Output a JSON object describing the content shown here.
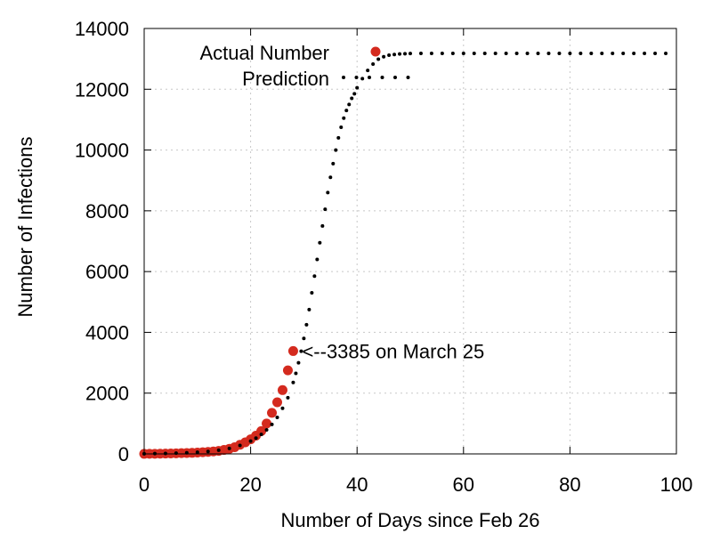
{
  "chart_data": {
    "type": "scatter",
    "xlabel": "Number of Days since Feb 26",
    "ylabel": "Number of Infections",
    "xlim": [
      0,
      100
    ],
    "ylim": [
      0,
      14000
    ],
    "xticks": [
      0,
      20,
      40,
      60,
      80,
      100
    ],
    "yticks": [
      0,
      2000,
      4000,
      6000,
      8000,
      10000,
      12000,
      14000
    ],
    "grid": true,
    "legend_position": "top-right",
    "series": [
      {
        "name": "Actual Number",
        "color": "#d42a1e",
        "marker": "circle",
        "x": [
          0,
          1,
          2,
          3,
          4,
          5,
          6,
          7,
          8,
          9,
          10,
          11,
          12,
          13,
          14,
          15,
          16,
          17,
          18,
          19,
          20,
          21,
          22,
          23,
          24,
          25,
          26,
          27,
          28
        ],
        "y": [
          2,
          3,
          5,
          8,
          12,
          15,
          20,
          25,
          30,
          35,
          45,
          55,
          65,
          80,
          100,
          130,
          170,
          220,
          300,
          380,
          480,
          600,
          750,
          1000,
          1350,
          1700,
          2100,
          2750,
          3385
        ]
      },
      {
        "name": "Prediction",
        "color": "#000000",
        "marker": "dot",
        "x": [
          0,
          2,
          4,
          6,
          8,
          10,
          12,
          14,
          16,
          18,
          20,
          21,
          22,
          23,
          24,
          25,
          26,
          27,
          28,
          28.5,
          29,
          29.5,
          30,
          30.5,
          31,
          31.5,
          32,
          32.5,
          33,
          33.5,
          34,
          34.5,
          35,
          35.5,
          36,
          36.5,
          37,
          37.5,
          38,
          38.5,
          39,
          39.5,
          40,
          41,
          42,
          43,
          44,
          45,
          46,
          47,
          48,
          49,
          50,
          52,
          54,
          56,
          58,
          60,
          62,
          64,
          66,
          68,
          70,
          72,
          74,
          76,
          78,
          80,
          82,
          84,
          86,
          88,
          90,
          92,
          94,
          96,
          98
        ],
        "y": [
          5,
          10,
          15,
          25,
          35,
          55,
          80,
          120,
          180,
          280,
          420,
          520,
          640,
          790,
          970,
          1200,
          1500,
          1850,
          2350,
          2650,
          3000,
          3380,
          3800,
          4250,
          4750,
          5300,
          5850,
          6400,
          6950,
          7500,
          8050,
          8600,
          9100,
          9550,
          10000,
          10400,
          10750,
          11050,
          11300,
          11500,
          11700,
          11850,
          12050,
          12350,
          12620,
          12830,
          12990,
          13070,
          13120,
          13145,
          13160,
          13170,
          13175,
          13180,
          13180,
          13180,
          13180,
          13180,
          13180,
          13180,
          13180,
          13180,
          13180,
          13180,
          13180,
          13180,
          13180,
          13180,
          13180,
          13180,
          13180,
          13180,
          13180,
          13180,
          13180,
          13180,
          13180
        ]
      }
    ],
    "annotations": [
      {
        "text": "<--3385 on March 25",
        "x": 28,
        "y": 3385
      }
    ]
  }
}
